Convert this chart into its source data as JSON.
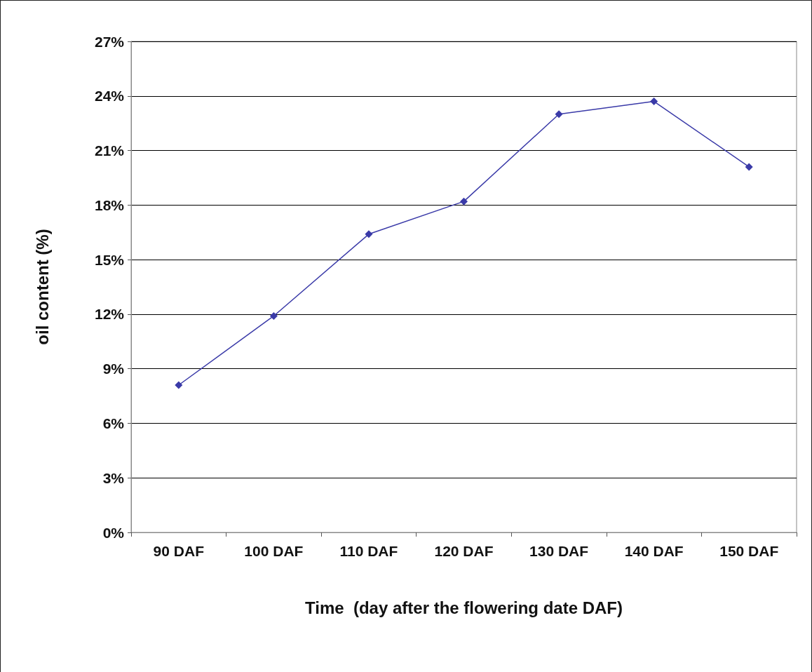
{
  "chart_data": {
    "type": "line",
    "xlabel": "Time  (day after the flowering date DAF)",
    "ylabel": "oil content (%)",
    "categories": [
      "90 DAF",
      "100 DAF",
      "110 DAF",
      "120 DAF",
      "130 DAF",
      "140 DAF",
      "150 DAF"
    ],
    "series": [
      {
        "color": "#3a3aa8",
        "values": [
          8.1,
          11.9,
          16.4,
          18.2,
          23.0,
          23.7,
          20.1
        ]
      }
    ],
    "ylim": [
      0,
      27
    ],
    "yticks": [
      {
        "value": 0,
        "label": "0%"
      },
      {
        "value": 3,
        "label": "3%"
      },
      {
        "value": 6,
        "label": "6%"
      },
      {
        "value": 9,
        "label": "9%"
      },
      {
        "value": 12,
        "label": "12%"
      },
      {
        "value": 15,
        "label": "15%"
      },
      {
        "value": 18,
        "label": "18%"
      },
      {
        "value": 21,
        "label": "21%"
      },
      {
        "value": 24,
        "label": "24%"
      },
      {
        "value": 27,
        "label": "27%"
      }
    ],
    "grid": "y",
    "marker": "diamond",
    "line_style": "solid"
  }
}
